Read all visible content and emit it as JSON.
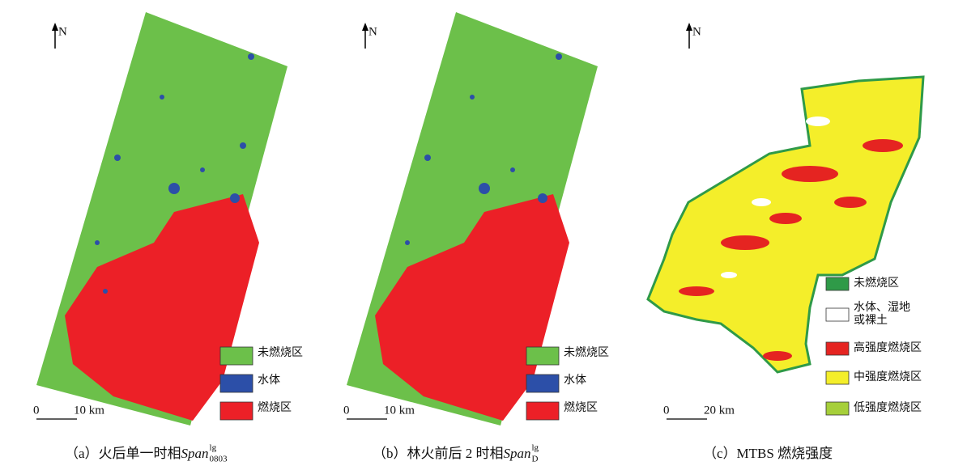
{
  "panels": [
    {
      "north": "N",
      "scale_start": "0",
      "scale_end": "10 km",
      "legend": [
        {
          "lines": [
            "未燃烧区"
          ],
          "color": "#6cc04a"
        },
        {
          "lines": [
            "水体"
          ],
          "color": "#2c4fa8"
        },
        {
          "lines": [
            "燃烧区"
          ],
          "color": "#ec2027"
        }
      ],
      "caption": {
        "prefix": "（a）火后单一时相 ",
        "span": "Span",
        "sup": "lg",
        "sub": "0803"
      }
    },
    {
      "north": "N",
      "scale_start": "0",
      "scale_end": "10 km",
      "legend": [
        {
          "lines": [
            "未燃烧区"
          ],
          "color": "#6cc04a"
        },
        {
          "lines": [
            "水体"
          ],
          "color": "#2c4fa8"
        },
        {
          "lines": [
            "燃烧区"
          ],
          "color": "#ec2027"
        }
      ],
      "caption": {
        "prefix": "（b）林火前后 2 时相 ",
        "span": "Span",
        "sup": "lg",
        "sub": "D"
      }
    },
    {
      "north": "N",
      "scale_start": "0",
      "scale_end": "20 km",
      "legend": [
        {
          "lines": [
            "未燃烧区"
          ],
          "color": "#2f9a48"
        },
        {
          "lines": [
            "水体、湿地",
            "或裸土"
          ],
          "color": "#ffffff"
        },
        {
          "lines": [
            "高强度燃烧区"
          ],
          "color": "#e52421"
        },
        {
          "lines": [
            "中强度燃烧区"
          ],
          "color": "#f4ee2a"
        },
        {
          "lines": [
            "低强度燃烧区"
          ],
          "color": "#a6cf3a"
        }
      ],
      "caption": {
        "prefix": "（c）MTBS 燃烧强度",
        "span": null,
        "sup": null,
        "sub": null
      }
    }
  ]
}
